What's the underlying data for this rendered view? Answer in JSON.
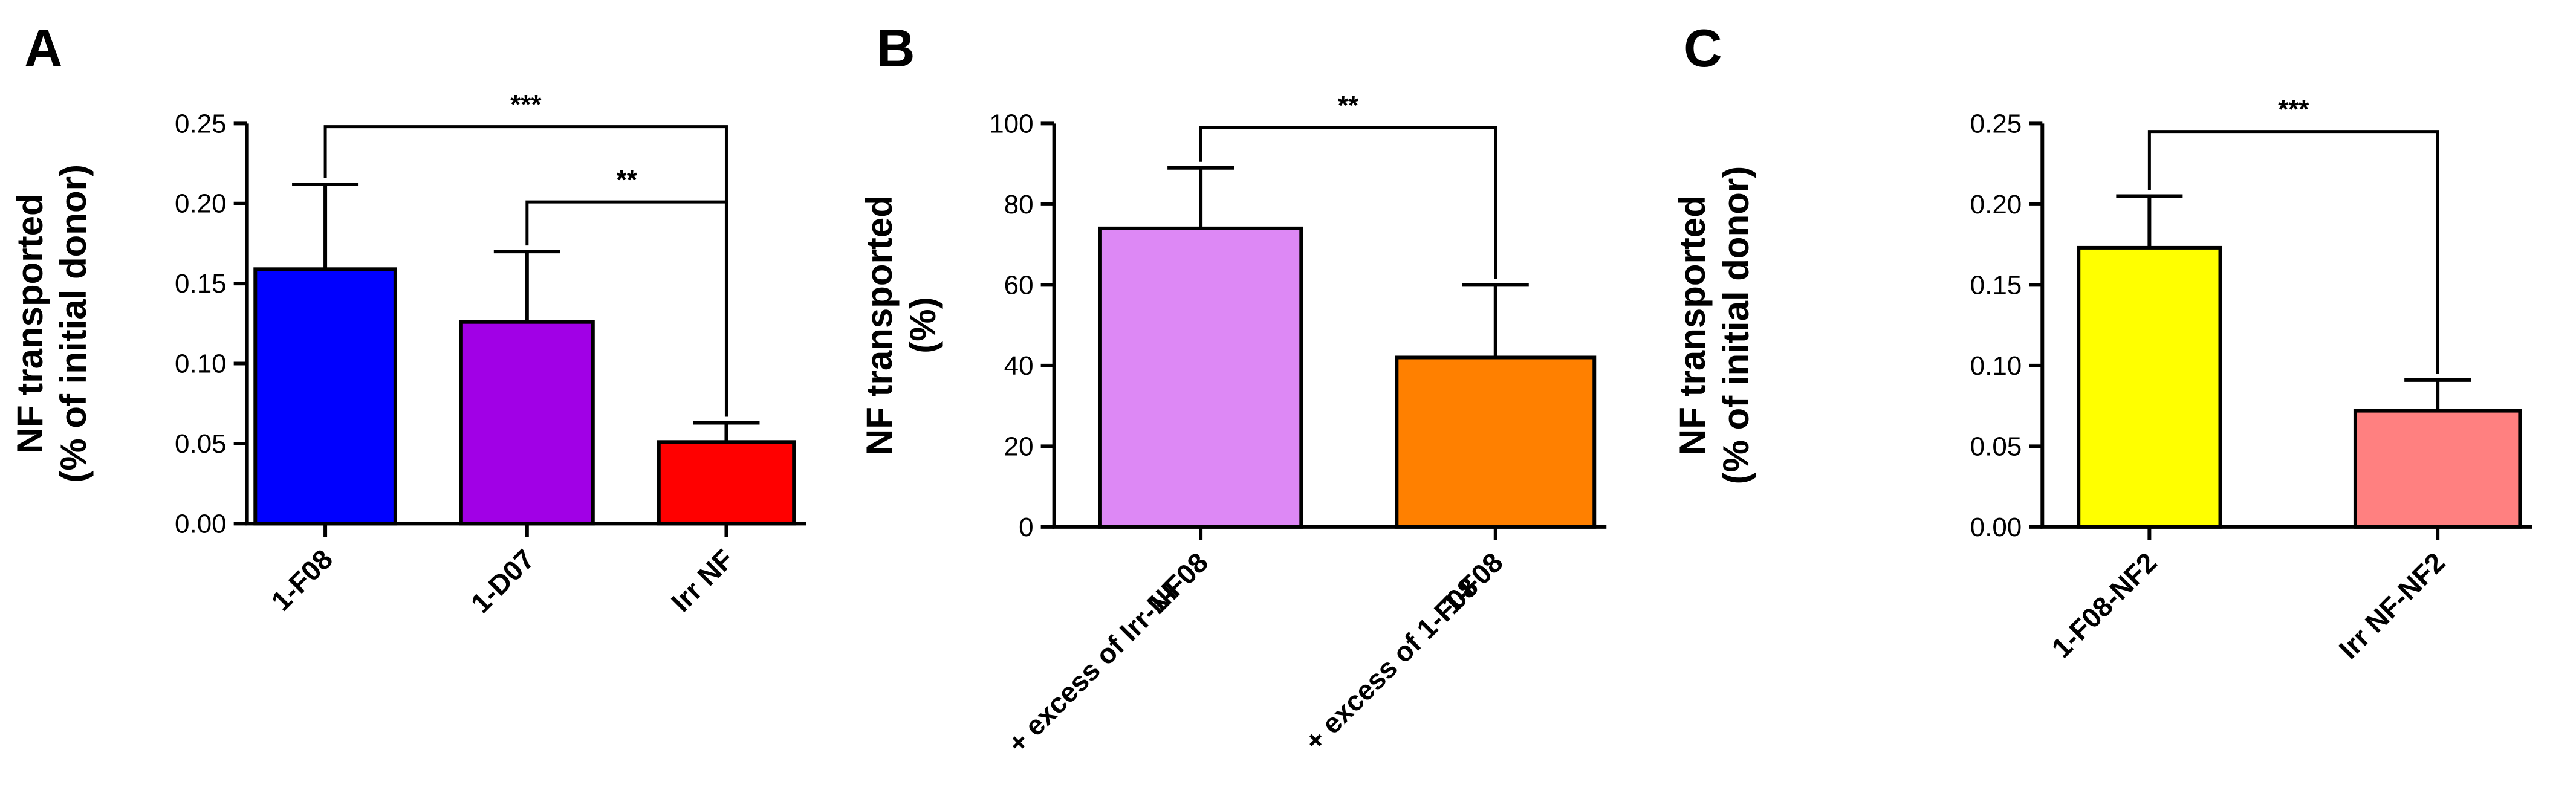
{
  "chart_data": [
    {
      "type": "bar",
      "panel": "A",
      "ylabel": [
        "NF transported",
        "(% of initial donor)"
      ],
      "ylim": [
        0,
        0.25
      ],
      "yticks": [
        "0.00",
        "0.05",
        "0.10",
        "0.15",
        "0.20",
        "0.25"
      ],
      "categories": [
        [
          "1-F08"
        ],
        [
          "1-D07"
        ],
        [
          "Irr NF"
        ]
      ],
      "values": [
        0.159,
        0.126,
        0.051
      ],
      "errors": [
        0.053,
        0.044,
        0.012
      ],
      "colors": [
        "#0000FF",
        "#A100E6",
        "#FF0000"
      ],
      "significance": [
        {
          "from": 0,
          "to": 2,
          "label": "***",
          "level": 0.248
        },
        {
          "from": 1,
          "to": 2,
          "label": "**",
          "level": 0.201
        }
      ]
    },
    {
      "type": "bar",
      "panel": "B",
      "ylabel": [
        "NF transported",
        "(%)"
      ],
      "ylim": [
        0,
        100
      ],
      "yticks": [
        "0",
        "20",
        "40",
        "60",
        "80",
        "100"
      ],
      "categories": [
        [
          "1-F08",
          "+ excess of  Irr-NF"
        ],
        [
          "1-F08",
          "+ excess of 1-F08"
        ]
      ],
      "values": [
        74,
        42
      ],
      "errors": [
        15,
        18
      ],
      "colors": [
        "#DD88F5",
        "#FF8000"
      ],
      "significance": [
        {
          "from": 0,
          "to": 1,
          "label": "**",
          "level": 99
        }
      ]
    },
    {
      "type": "bar",
      "panel": "C",
      "ylabel": [
        "NF transported",
        "(% of initial donor)"
      ],
      "ylim": [
        0,
        0.25
      ],
      "yticks": [
        "0.00",
        "0.05",
        "0.10",
        "0.15",
        "0.20",
        "0.25"
      ],
      "categories": [
        [
          "1-F08-NF2"
        ],
        [
          "Irr NF-NF2"
        ]
      ],
      "values": [
        0.173,
        0.072
      ],
      "errors": [
        0.032,
        0.019
      ],
      "colors": [
        "#FFFF00",
        "#FF8080"
      ],
      "significance": [
        {
          "from": 0,
          "to": 1,
          "label": "***",
          "level": 0.245
        }
      ]
    }
  ]
}
